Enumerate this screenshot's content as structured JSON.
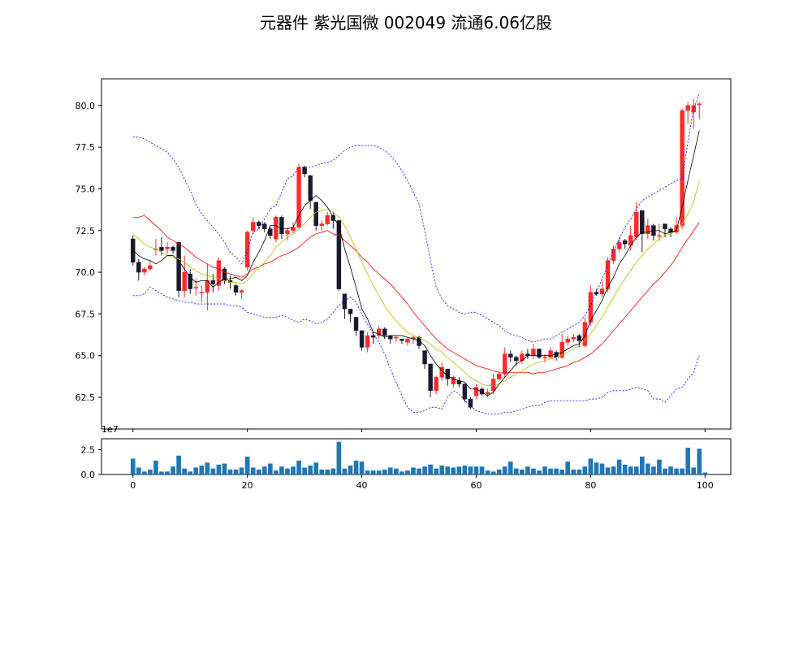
{
  "figure": {
    "title": "元器件 紫光国微 002049 流通6.06亿股"
  },
  "chart_data": [
    {
      "type": "candlestick",
      "panel": "price",
      "title": "元器件 紫光国微 002049 流通6.06亿股",
      "xlim": [
        -5.5,
        104.5
      ],
      "ylim": [
        60.6,
        81.6
      ],
      "yticks": [
        62.5,
        65.0,
        67.5,
        70.0,
        72.5,
        75.0,
        77.5,
        80.0
      ],
      "ytick_labels": [
        "62.5",
        "65.0",
        "67.5",
        "70.0",
        "72.5",
        "75.0",
        "77.5",
        "80.0"
      ],
      "colors": {
        "up": "#ff2a2a",
        "down": "#1a1a2e",
        "ma5": "#000000",
        "ma10": "#bbbb00",
        "ma20": "#ff0000",
        "boll": "#0000ff"
      },
      "close": [
        70.6,
        70.0,
        70.2,
        70.4,
        71.4,
        71.3,
        71.5,
        71.3,
        68.9,
        70.0,
        69.0,
        69.1,
        68.8,
        69.5,
        69.3,
        70.7,
        69.5,
        69.4,
        68.8,
        68.9,
        72.4,
        73.0,
        72.8,
        72.6,
        72.2,
        73.3,
        72.3,
        72.5,
        72.7,
        76.3,
        75.9,
        74.3,
        72.8,
        72.9,
        73.4,
        73.1,
        69.0,
        67.8,
        67.5,
        66.5,
        65.5,
        66.2,
        66.1,
        66.6,
        66.2,
        66.0,
        66.1,
        65.9,
        66.0,
        66.1,
        65.6,
        64.5,
        62.9,
        63.7,
        64.3,
        63.6,
        63.7,
        63.3,
        62.4,
        61.9,
        63.1,
        62.7,
        62.8,
        63.6,
        63.9,
        65.1,
        64.9,
        64.7,
        65.1,
        65.0,
        65.4,
        64.9,
        64.9,
        65.3,
        64.9,
        65.8,
        66.0,
        66.1,
        65.9,
        67.0,
        68.8,
        68.7,
        69.0,
        70.7,
        71.4,
        71.8,
        71.7,
        72.2,
        73.6,
        72.3,
        72.8,
        72.2,
        72.2,
        72.6,
        72.4,
        72.8,
        79.7,
        80.0,
        80.0,
        80.1
      ],
      "open": [
        72.0,
        70.6,
        70.0,
        70.2,
        71.4,
        71.5,
        71.4,
        71.5,
        71.8,
        68.9,
        69.9,
        69.1,
        68.8,
        68.8,
        69.5,
        69.2,
        70.2,
        69.5,
        69.2,
        68.8,
        70.3,
        72.5,
        73.0,
        72.9,
        72.6,
        72.0,
        73.3,
        72.3,
        72.5,
        72.7,
        76.3,
        75.8,
        74.2,
        72.8,
        72.9,
        73.4,
        73.1,
        68.7,
        67.8,
        67.3,
        66.5,
        65.5,
        66.2,
        66.2,
        66.6,
        66.2,
        66.1,
        66.0,
        65.8,
        66.0,
        66.1,
        65.3,
        64.5,
        62.9,
        63.7,
        64.2,
        63.3,
        63.5,
        63.3,
        62.4,
        62.6,
        63.0,
        62.7,
        62.9,
        63.6,
        63.9,
        65.1,
        64.9,
        64.7,
        65.1,
        65.0,
        65.4,
        64.9,
        64.9,
        65.2,
        64.9,
        65.8,
        66.0,
        66.2,
        65.6,
        67.0,
        68.8,
        68.7,
        69.0,
        70.7,
        71.4,
        71.9,
        71.6,
        72.1,
        73.7,
        72.3,
        72.8,
        72.2,
        72.9,
        72.6,
        72.4,
        72.8,
        79.7,
        79.6,
        80.1
      ],
      "high": [
        72.2,
        70.8,
        70.3,
        70.7,
        72.0,
        72.1,
        71.8,
        71.6,
        71.8,
        71.0,
        70.2,
        69.6,
        69.2,
        70.5,
        69.9,
        70.9,
        70.3,
        69.8,
        69.3,
        69.0,
        72.5,
        73.3,
        73.1,
        73.0,
        72.7,
        73.4,
        73.4,
        72.7,
        73.0,
        76.5,
        76.4,
        75.8,
        74.2,
        73.1,
        73.6,
        73.6,
        73.1,
        68.7,
        67.8,
        67.3,
        66.5,
        66.4,
        66.4,
        66.8,
        66.7,
        66.2,
        66.2,
        66.0,
        66.1,
        66.2,
        66.2,
        65.3,
        64.5,
        63.8,
        64.6,
        64.2,
        63.8,
        63.7,
        63.3,
        62.5,
        63.3,
        63.1,
        63.0,
        63.9,
        64.0,
        65.5,
        65.3,
        65.0,
        65.3,
        65.4,
        65.7,
        65.4,
        65.1,
        65.5,
        65.3,
        66.3,
        66.2,
        66.3,
        66.3,
        67.3,
        69.2,
        69.0,
        69.5,
        70.9,
        71.6,
        72.1,
        72.0,
        72.8,
        74.2,
        73.7,
        73.2,
        72.9,
        72.9,
        72.9,
        72.7,
        73.3,
        79.8,
        80.2,
        80.4,
        80.2
      ],
      "low": [
        70.4,
        69.5,
        69.8,
        70.1,
        71.0,
        71.0,
        71.1,
        71.1,
        68.5,
        68.5,
        68.7,
        68.6,
        68.2,
        67.7,
        68.8,
        68.9,
        69.3,
        69.0,
        68.6,
        68.4,
        70.1,
        72.3,
        72.6,
        72.4,
        72.0,
        71.8,
        72.0,
        71.9,
        72.3,
        72.6,
        75.7,
        73.8,
        72.5,
        72.5,
        72.8,
        72.6,
        68.9,
        67.2,
        67.0,
        66.2,
        65.3,
        65.2,
        65.7,
        66.0,
        66.0,
        65.7,
        65.8,
        65.7,
        65.6,
        65.7,
        65.4,
        64.2,
        62.5,
        62.7,
        63.5,
        63.2,
        63.1,
        63.1,
        62.2,
        61.8,
        62.4,
        62.6,
        62.5,
        62.7,
        63.5,
        63.7,
        64.6,
        64.4,
        64.5,
        64.8,
        64.8,
        64.8,
        64.6,
        64.8,
        64.7,
        64.8,
        65.6,
        65.8,
        65.5,
        65.5,
        66.8,
        68.6,
        68.5,
        68.8,
        70.5,
        71.2,
        71.4,
        71.3,
        71.9,
        71.2,
        72.0,
        71.9,
        71.9,
        72.1,
        72.1,
        72.3,
        72.6,
        78.9,
        78.6,
        79.2
      ],
      "ma5": [
        71.3,
        71.0,
        70.8,
        70.7,
        70.5,
        70.7,
        71.0,
        71.0,
        70.7,
        70.2,
        69.7,
        69.4,
        69.5,
        69.5,
        69.1,
        69.4,
        69.6,
        69.6,
        69.7,
        69.5,
        69.8,
        70.6,
        71.2,
        71.9,
        72.8,
        72.8,
        72.6,
        72.6,
        72.7,
        73.4,
        74.0,
        74.3,
        74.6,
        74.3,
        73.9,
        73.3,
        72.8,
        71.4,
        70.3,
        69.1,
        67.8,
        67.2,
        66.4,
        66.3,
        66.1,
        66.2,
        66.2,
        66.2,
        66.1,
        66.0,
        65.9,
        65.6,
        65.0,
        64.5,
        64.1,
        63.8,
        63.6,
        63.5,
        63.4,
        63.0,
        63.0,
        62.8,
        62.6,
        62.8,
        63.3,
        63.7,
        64.1,
        64.5,
        64.7,
        65.0,
        65.0,
        65.0,
        65.0,
        65.0,
        65.1,
        65.2,
        65.4,
        65.6,
        65.7,
        66.2,
        67.1,
        67.7,
        68.3,
        69.1,
        69.7,
        70.5,
        71.0,
        71.6,
        72.1,
        72.4,
        72.4,
        72.5,
        72.5,
        72.3,
        72.4,
        72.5,
        73.9,
        75.5,
        77.0,
        78.5
      ],
      "ma10": [
        72.3,
        72.0,
        71.7,
        71.5,
        71.4,
        71.2,
        71.0,
        70.9,
        70.8,
        70.6,
        70.3,
        70.1,
        69.9,
        69.8,
        69.7,
        69.6,
        69.5,
        69.4,
        69.4,
        69.3,
        69.5,
        69.9,
        70.3,
        70.6,
        71.0,
        71.5,
        71.8,
        72.1,
        72.3,
        72.6,
        72.9,
        73.3,
        73.6,
        73.7,
        73.8,
        73.6,
        73.3,
        72.8,
        72.1,
        71.4,
        70.6,
        69.9,
        69.2,
        68.6,
        68.0,
        67.5,
        67.1,
        66.7,
        66.4,
        66.2,
        66.1,
        65.9,
        65.7,
        65.4,
        65.2,
        64.9,
        64.6,
        64.3,
        64.0,
        63.7,
        63.5,
        63.3,
        63.2,
        63.2,
        63.3,
        63.5,
        63.7,
        63.9,
        64.1,
        64.3,
        64.5,
        64.6,
        64.7,
        64.8,
        64.9,
        65.0,
        65.2,
        65.4,
        65.6,
        65.9,
        66.3,
        66.8,
        67.3,
        67.9,
        68.5,
        69.1,
        69.6,
        70.1,
        70.6,
        71.0,
        71.4,
        71.7,
        72.0,
        72.2,
        72.3,
        72.5,
        72.9,
        73.5,
        74.2,
        75.5
      ],
      "ma20": [
        73.3,
        73.3,
        73.4,
        73.1,
        72.8,
        72.5,
        72.1,
        71.9,
        71.7,
        71.5,
        71.2,
        70.9,
        70.7,
        70.5,
        70.3,
        70.2,
        70.0,
        69.9,
        69.8,
        69.7,
        69.9,
        70.2,
        70.3,
        70.5,
        70.6,
        70.8,
        71.0,
        71.1,
        71.3,
        71.5,
        71.8,
        72.1,
        72.3,
        72.4,
        72.5,
        72.3,
        72.2,
        71.9,
        71.6,
        71.3,
        70.9,
        70.6,
        70.2,
        69.9,
        69.6,
        69.3,
        68.9,
        68.5,
        68.1,
        67.6,
        67.2,
        66.8,
        66.4,
        66.0,
        65.7,
        65.4,
        65.2,
        65.0,
        64.8,
        64.6,
        64.4,
        64.3,
        64.2,
        64.1,
        64.0,
        64.0,
        64.0,
        64.0,
        64.0,
        64.0,
        63.9,
        64.0,
        64.0,
        64.1,
        64.2,
        64.3,
        64.4,
        64.6,
        64.7,
        64.9,
        65.1,
        65.4,
        65.7,
        66.1,
        66.5,
        66.9,
        67.3,
        67.7,
        68.1,
        68.5,
        68.9,
        69.3,
        69.6,
        70.0,
        70.4,
        70.9,
        71.5,
        72.0,
        72.5,
        73.0
      ],
      "boll_upper": [
        78.1,
        78.1,
        78.0,
        77.8,
        77.6,
        77.4,
        77.2,
        76.8,
        76.3,
        75.6,
        74.9,
        74.1,
        73.5,
        73.1,
        72.7,
        72.3,
        71.8,
        71.2,
        70.9,
        70.5,
        71.3,
        72.4,
        72.6,
        73.2,
        73.8,
        74.0,
        74.8,
        75.6,
        75.8,
        76.3,
        76.3,
        76.3,
        76.4,
        76.5,
        76.6,
        76.7,
        77.0,
        77.3,
        77.5,
        77.6,
        77.6,
        77.6,
        77.6,
        77.5,
        77.3,
        77.0,
        76.6,
        76.1,
        75.5,
        74.8,
        74.1,
        72.5,
        70.7,
        69.1,
        68.4,
        68.0,
        67.8,
        67.6,
        67.5,
        67.6,
        67.6,
        67.4,
        67.2,
        67.0,
        66.8,
        66.5,
        66.3,
        66.2,
        66.1,
        65.9,
        65.8,
        65.9,
        66.0,
        66.0,
        66.2,
        66.4,
        66.6,
        66.8,
        67.0,
        67.4,
        68.0,
        68.8,
        69.6,
        70.4,
        71.3,
        72.0,
        72.7,
        73.2,
        73.8,
        74.3,
        74.5,
        74.7,
        74.9,
        75.1,
        75.3,
        75.5,
        75.6,
        77.8,
        79.8,
        80.7
      ],
      "boll_lower": [
        68.6,
        68.6,
        68.7,
        69.1,
        68.9,
        68.7,
        68.5,
        68.4,
        68.3,
        68.2,
        68.2,
        68.1,
        68.1,
        68.1,
        68.1,
        68.1,
        68.1,
        68.0,
        68.0,
        67.9,
        67.6,
        67.5,
        67.4,
        67.3,
        67.3,
        67.3,
        67.4,
        67.3,
        67.1,
        67.0,
        67.2,
        67.1,
        66.9,
        67.0,
        67.2,
        67.6,
        68.0,
        68.3,
        68.5,
        68.2,
        67.5,
        66.9,
        66.3,
        65.8,
        65.1,
        64.2,
        63.4,
        62.6,
        61.9,
        61.6,
        61.6,
        61.7,
        61.9,
        61.9,
        61.8,
        62.5,
        62.9,
        62.7,
        62.3,
        62.0,
        61.7,
        61.6,
        61.5,
        61.5,
        61.5,
        61.6,
        61.6,
        61.7,
        61.8,
        61.9,
        62.0,
        62.0,
        62.2,
        62.3,
        62.3,
        62.3,
        62.3,
        62.3,
        62.3,
        62.3,
        62.4,
        62.4,
        62.5,
        62.8,
        62.9,
        62.9,
        62.9,
        63.0,
        63.1,
        63.0,
        62.9,
        62.4,
        62.4,
        62.2,
        62.6,
        63.0,
        63.1,
        63.6,
        64.0,
        65.0
      ]
    },
    {
      "type": "bar",
      "panel": "volume",
      "offset_label": "1e7",
      "xlim": [
        -5.5,
        104.5
      ],
      "ylim": [
        0,
        3.6
      ],
      "xticks": [
        0,
        20,
        40,
        60,
        80,
        100
      ],
      "xtick_labels": [
        "0",
        "20",
        "40",
        "60",
        "80",
        "100"
      ],
      "yticks": [
        0.0,
        2.5
      ],
      "ytick_labels": [
        "0.0",
        "2.5"
      ],
      "bar_color": "#1f77b4",
      "values": [
        1.6,
        0.7,
        0.3,
        0.5,
        1.4,
        0.3,
        0.3,
        0.8,
        1.9,
        0.6,
        0.3,
        0.7,
        0.9,
        1.2,
        0.6,
        1.0,
        1.1,
        0.5,
        0.5,
        0.7,
        1.8,
        0.7,
        0.5,
        0.8,
        1.1,
        0.4,
        0.8,
        0.6,
        0.8,
        1.4,
        0.7,
        0.9,
        1.2,
        0.5,
        0.5,
        0.6,
        3.3,
        0.6,
        0.9,
        1.4,
        1.3,
        0.4,
        0.4,
        0.4,
        0.5,
        0.7,
        0.6,
        0.3,
        0.4,
        0.7,
        0.6,
        0.8,
        1.0,
        0.6,
        0.9,
        0.8,
        0.7,
        0.8,
        0.9,
        0.8,
        0.8,
        0.8,
        0.4,
        0.3,
        0.5,
        0.8,
        1.3,
        0.6,
        0.5,
        0.8,
        0.6,
        0.4,
        0.8,
        0.6,
        0.6,
        0.5,
        1.3,
        0.5,
        0.5,
        0.8,
        1.6,
        1.2,
        1.1,
        0.7,
        0.8,
        1.5,
        1.0,
        0.8,
        0.8,
        1.8,
        1.1,
        0.8,
        1.5,
        0.6,
        0.8,
        0.6,
        0.6,
        2.7,
        0.7,
        2.6,
        0.2
      ]
    }
  ]
}
